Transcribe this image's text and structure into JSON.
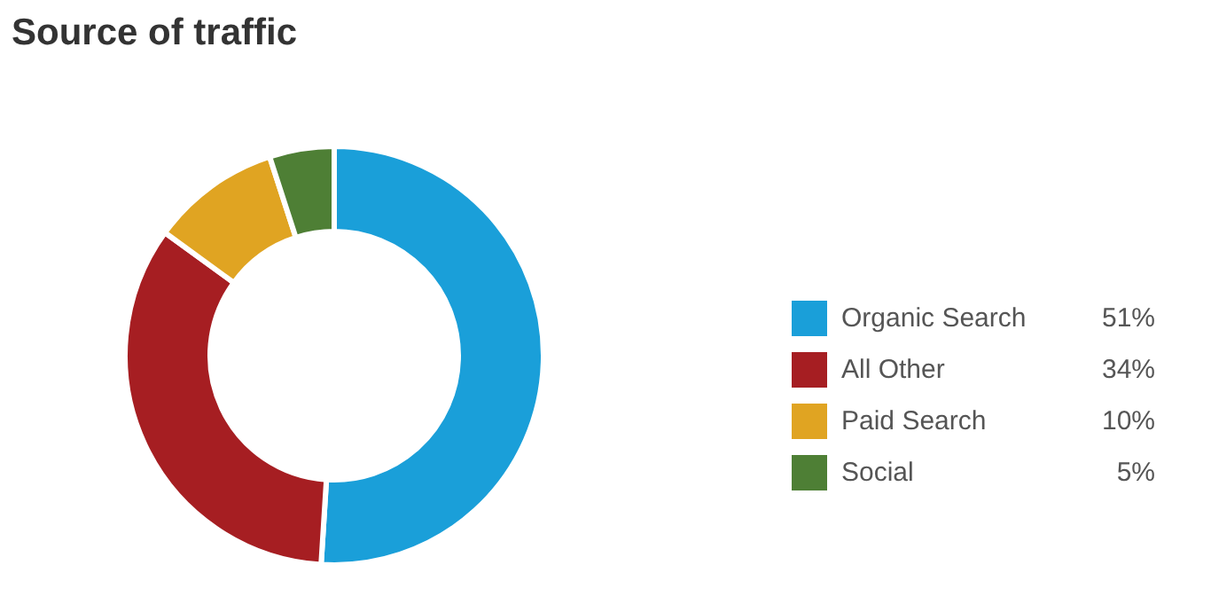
{
  "chart_data": {
    "type": "donut",
    "title": "Source of traffic",
    "categories": [
      "Organic Search",
      "All Other",
      "Paid Search",
      "Social"
    ],
    "values": [
      51,
      34,
      10,
      5
    ],
    "colors": [
      "#1a9fd9",
      "#a61e22",
      "#e0a422",
      "#4e7f35"
    ],
    "value_labels": [
      "51%",
      "34%",
      "10%",
      "5%"
    ],
    "legend": "right"
  }
}
